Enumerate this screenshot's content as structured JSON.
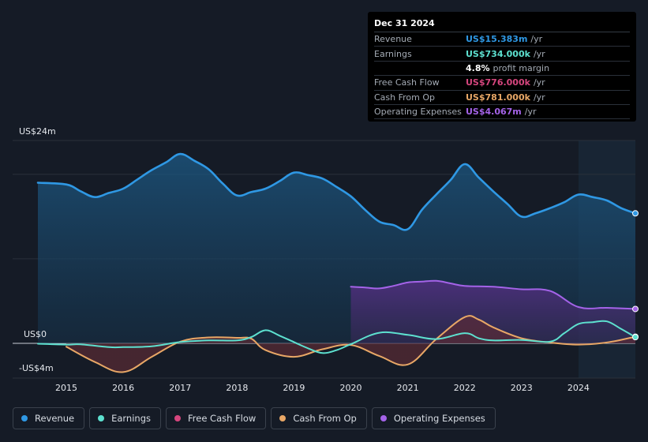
{
  "tooltip": {
    "date": "Dec 31 2024",
    "rows": [
      {
        "label": "Revenue",
        "value": "US$15.383m",
        "unit": "/yr",
        "color": "#2f98e4"
      },
      {
        "label": "Earnings",
        "value": "US$734.000k",
        "unit": "/yr",
        "color": "#5de0cf"
      },
      {
        "label": "Free Cash Flow",
        "value": "US$776.000k",
        "unit": "/yr",
        "color": "#d6467e"
      },
      {
        "label": "Cash From Op",
        "value": "US$781.000k",
        "unit": "/yr",
        "color": "#e8a766"
      },
      {
        "label": "Operating Expenses",
        "value": "US$4.067m",
        "unit": "/yr",
        "color": "#a463e8"
      }
    ],
    "profit_margin_value": "4.8%",
    "profit_margin_label": "profit margin"
  },
  "legend": [
    {
      "label": "Revenue",
      "color": "#2f98e4"
    },
    {
      "label": "Earnings",
      "color": "#5de0cf"
    },
    {
      "label": "Free Cash Flow",
      "color": "#d6467e"
    },
    {
      "label": "Cash From Op",
      "color": "#e8a766"
    },
    {
      "label": "Operating Expenses",
      "color": "#a463e8"
    }
  ],
  "chart_data": {
    "type": "area",
    "title": "",
    "y_tick_labels": [
      "US$24m",
      "US$0",
      "-US$4m"
    ],
    "ylim": [
      -4,
      24
    ],
    "xlim": [
      2014.5,
      2025.0
    ],
    "x_tick_labels": [
      "2015",
      "2016",
      "2017",
      "2018",
      "2019",
      "2020",
      "2021",
      "2022",
      "2023",
      "2024"
    ],
    "x_ticks": [
      2015,
      2016,
      2017,
      2018,
      2019,
      2020,
      2021,
      2022,
      2023,
      2024
    ],
    "forecast_shade_start": 2024.0,
    "series": [
      {
        "name": "Revenue",
        "color": "#2f98e4",
        "fill": true,
        "x": [
          2014.5,
          2015.0,
          2015.25,
          2015.5,
          2015.75,
          2016.0,
          2016.25,
          2016.5,
          2016.75,
          2017.0,
          2017.25,
          2017.5,
          2017.75,
          2018.0,
          2018.25,
          2018.5,
          2018.75,
          2019.0,
          2019.25,
          2019.5,
          2019.75,
          2020.0,
          2020.25,
          2020.5,
          2020.75,
          2021.0,
          2021.25,
          2021.5,
          2021.75,
          2022.0,
          2022.25,
          2022.5,
          2022.75,
          2023.0,
          2023.25,
          2023.5,
          2023.75,
          2024.0,
          2024.25,
          2024.5,
          2024.75,
          2025.0
        ],
        "values": [
          19.0,
          18.8,
          18.0,
          17.3,
          17.8,
          18.3,
          19.4,
          20.5,
          21.4,
          22.4,
          21.6,
          20.6,
          18.9,
          17.5,
          17.9,
          18.3,
          19.2,
          20.2,
          19.9,
          19.5,
          18.5,
          17.4,
          15.8,
          14.4,
          14.0,
          13.5,
          15.8,
          17.6,
          19.3,
          21.2,
          19.6,
          18.0,
          16.5,
          15.0,
          15.4,
          16.0,
          16.7,
          17.6,
          17.3,
          16.9,
          16.0,
          15.383
        ]
      },
      {
        "name": "Earnings",
        "color": "#5de0cf",
        "fill": false,
        "x": [
          2014.5,
          2015.0,
          2015.25,
          2015.75,
          2016.0,
          2016.5,
          2017.0,
          2017.5,
          2018.0,
          2018.25,
          2018.5,
          2018.75,
          2019.0,
          2019.25,
          2019.5,
          2019.75,
          2020.0,
          2020.5,
          2021.0,
          2021.5,
          2022.0,
          2022.25,
          2022.5,
          2023.0,
          2023.5,
          2023.75,
          2024.0,
          2024.25,
          2024.5,
          2024.75,
          2025.0
        ],
        "values": [
          -0.05,
          -0.15,
          -0.12,
          -0.45,
          -0.45,
          -0.35,
          0.15,
          0.35,
          0.35,
          0.75,
          1.55,
          0.9,
          0.15,
          -0.6,
          -1.15,
          -0.8,
          -0.1,
          1.25,
          1.0,
          0.5,
          1.2,
          0.6,
          0.35,
          0.4,
          0.2,
          1.2,
          2.3,
          2.5,
          2.6,
          1.7,
          0.734
        ]
      },
      {
        "name": "Cash From Op",
        "color": "#e8a766",
        "fill": true,
        "x": [
          2015.0,
          2015.5,
          2016.0,
          2016.5,
          2017.0,
          2017.5,
          2018.0,
          2018.25,
          2018.5,
          2019.0,
          2019.5,
          2020.0,
          2020.5,
          2021.0,
          2021.5,
          2022.0,
          2022.25,
          2022.5,
          2023.0,
          2023.5,
          2024.0,
          2024.5,
          2025.0
        ],
        "values": [
          -0.4,
          -2.2,
          -3.4,
          -1.6,
          0.2,
          0.7,
          0.65,
          0.55,
          -0.8,
          -1.6,
          -0.7,
          -0.2,
          -1.5,
          -2.5,
          0.5,
          3.1,
          2.8,
          1.9,
          0.6,
          0.1,
          -0.15,
          0.1,
          0.781
        ]
      },
      {
        "name": "Operating Expenses",
        "color": "#a463e8",
        "fill": true,
        "x": [
          2020.0,
          2020.25,
          2020.5,
          2020.75,
          2021.0,
          2021.25,
          2021.5,
          2021.75,
          2022.0,
          2022.5,
          2023.0,
          2023.5,
          2024.0,
          2024.5,
          2025.0
        ],
        "values": [
          6.7,
          6.6,
          6.5,
          6.8,
          7.2,
          7.3,
          7.4,
          7.1,
          6.8,
          6.7,
          6.4,
          6.2,
          4.3,
          4.2,
          4.067
        ]
      },
      {
        "name": "Free Cash Flow",
        "color": "#d6467e",
        "fill": false,
        "x": [],
        "values": []
      }
    ]
  }
}
